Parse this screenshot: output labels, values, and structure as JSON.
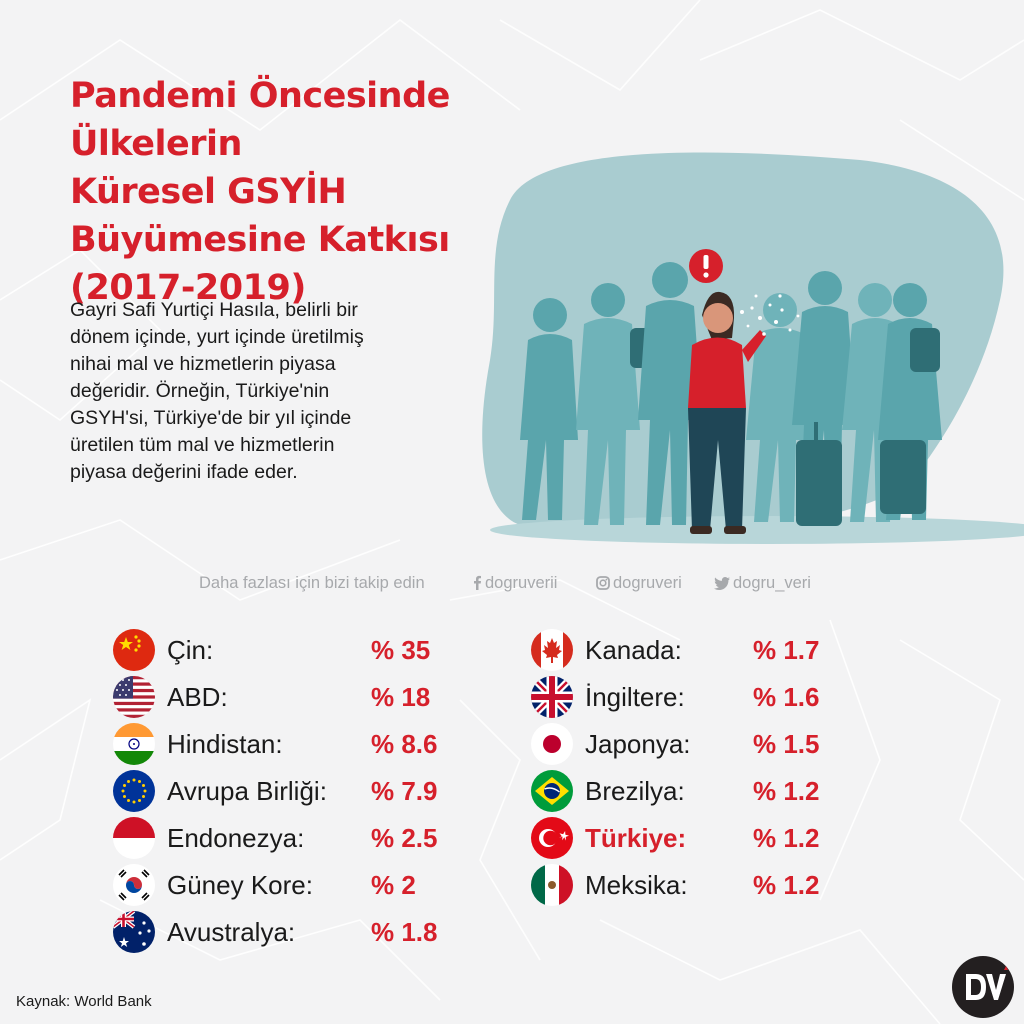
{
  "title_lines": [
    "Pandemi Öncesinde Ülkelerin",
    "Küresel GSYİH",
    "Büyümesine Katkısı",
    "(2017-2019)"
  ],
  "description_lines": [
    "Gayri Safi Yurtiçi Hasıla, belirli bir",
    "dönem içinde, yurt içinde üretilmiş",
    "nihai mal ve hizmetlerin piyasa",
    "değeridir. Örneğin, Türkiye'nin",
    "GSYH'si, Türkiye'de bir yıl içinde",
    "üretilen tüm mal ve hizmetlerin",
    "piyasa değerini ifade eder."
  ],
  "follow": {
    "text": "Daha fazlası için bizi takip edin",
    "facebook": "dogruverii",
    "instagram": "dogruveri",
    "twitter": "dogru_veri"
  },
  "countries_left": [
    {
      "name": "Çin:",
      "value": "% 35",
      "flag": "china-flag"
    },
    {
      "name": "ABD:",
      "value": "% 18",
      "flag": "usa-flag"
    },
    {
      "name": "Hindistan:",
      "value": "% 8.6",
      "flag": "india-flag"
    },
    {
      "name": "Avrupa Birliği:",
      "value": "% 7.9",
      "flag": "eu-flag"
    },
    {
      "name": "Endonezya:",
      "value": "% 2.5",
      "flag": "indonesia-flag"
    },
    {
      "name": "Güney Kore:",
      "value": "% 2",
      "flag": "south-korea-flag"
    },
    {
      "name": "Avustralya:",
      "value": "% 1.8",
      "flag": "australia-flag"
    }
  ],
  "countries_right": [
    {
      "name": "Kanada:",
      "value": "% 1.7",
      "flag": "canada-flag"
    },
    {
      "name": "İngiltere:",
      "value": "% 1.6",
      "flag": "uk-flag"
    },
    {
      "name": "Japonya:",
      "value": "% 1.5",
      "flag": "japan-flag"
    },
    {
      "name": "Brezilya:",
      "value": "% 1.2",
      "flag": "brazil-flag"
    },
    {
      "name": "Türkiye:",
      "value": "% 1.2",
      "flag": "turkey-flag",
      "highlight": true
    },
    {
      "name": "Meksika:",
      "value": "% 1.2",
      "flag": "mexico-flag"
    }
  ],
  "source": "Kaynak: World Bank",
  "logo_text": "DV",
  "colors": {
    "accent": "#d6202b",
    "illustration_bg": "#a9ccd0",
    "crowd": "#5aa5ac",
    "text": "#1a1a1a",
    "muted": "#a7a9ac"
  }
}
